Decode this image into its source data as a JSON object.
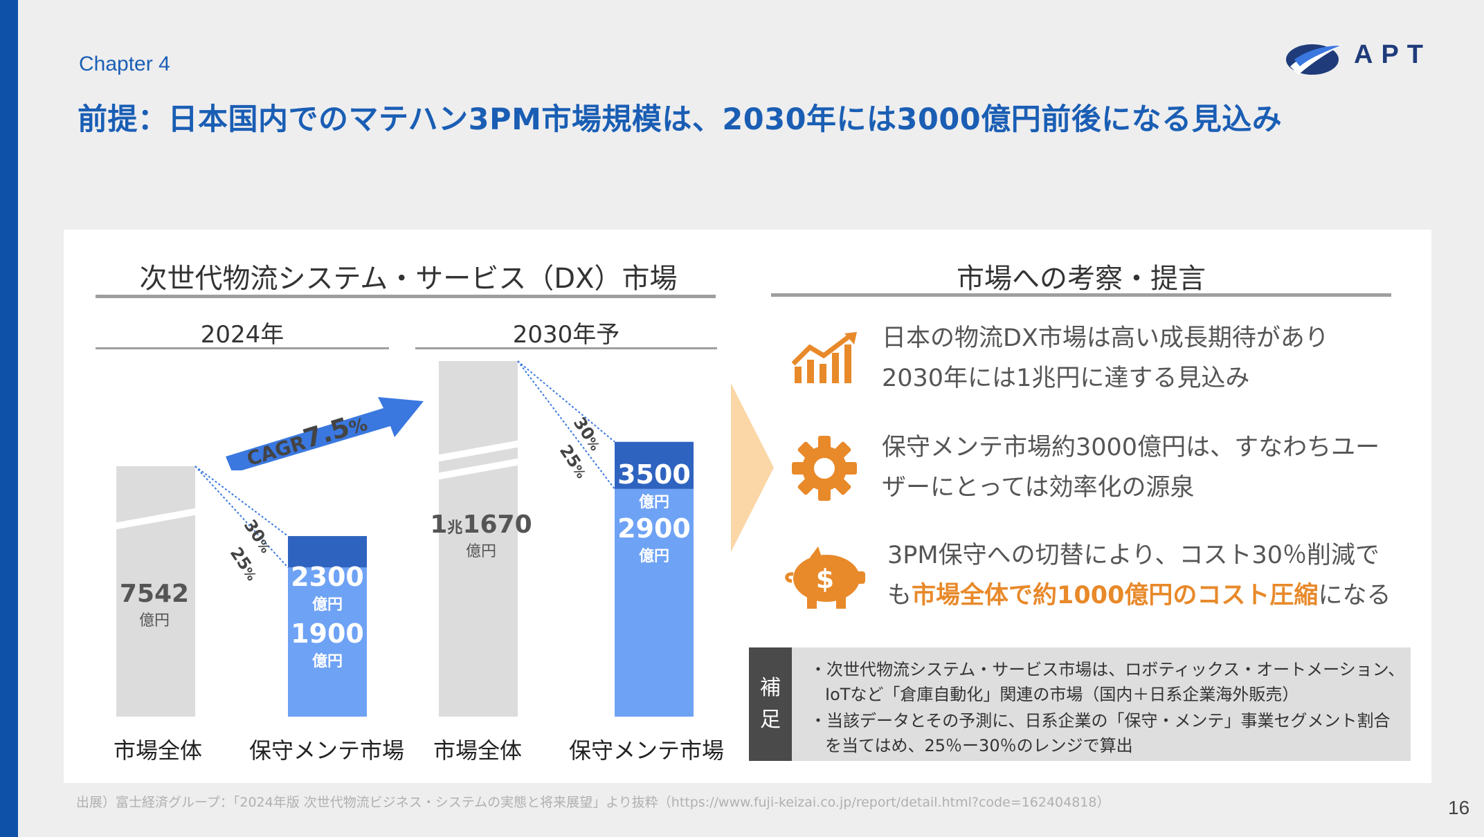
{
  "header": {
    "chapter": "Chapter 4",
    "title": "前提：日本国内でのマテハン3PM市場規模は、2030年には3000億円前後になる見込み",
    "logo_text": "APT"
  },
  "left": {
    "section_title": "次世代物流システム・サービス（DX）市場",
    "year_2024": "2024年",
    "year_2030": "2030年予",
    "cagr_prefix": "CAGR",
    "cagr_value": "7.5",
    "cagr_unit": "%"
  },
  "chart_data": {
    "type": "bar",
    "categories": [
      "市場全体",
      "保守メンテ市場",
      "市場全体",
      "保守メンテ市場"
    ],
    "groups": [
      "2024年",
      "2030年予"
    ],
    "series": [
      {
        "values": [
          7542,
          1900,
          11670,
          2900
        ]
      },
      {
        "values": [
          null,
          2300,
          null,
          3500
        ]
      }
    ],
    "value_labels": [
      {
        "main": "7542",
        "unit": "億円"
      },
      {
        "main": "2300",
        "unit": "億円"
      },
      {
        "main": "1900",
        "unit": "億円"
      },
      {
        "main_prefix": "1",
        "main_mid": "兆",
        "main": "1670",
        "unit": "億円"
      },
      {
        "main": "3500",
        "unit": "億円"
      },
      {
        "main": "2900",
        "unit": "億円"
      }
    ],
    "ratio_labels": [
      {
        "text": "30",
        "unit": "%"
      },
      {
        "text": "25",
        "unit": "%"
      },
      {
        "text": "30",
        "unit": "%"
      },
      {
        "text": "25",
        "unit": "%"
      }
    ],
    "colors": {
      "total": "#dcdcdc",
      "upper": "#2f63c0",
      "lower": "#6ea2f4",
      "arrow": "#3a78e0"
    }
  },
  "right": {
    "section_title": "市場への考察・提言",
    "insights": [
      {
        "icon": "growth-chart-icon",
        "line1": "日本の物流DX市場は高い成長期待があり",
        "line2": "2030年には1兆円に達する見込み"
      },
      {
        "icon": "gear-icon",
        "line1": "保守メンテ市場約3000億円は、すなわちユー",
        "line2": "ザーにとっては効率化の源泉"
      },
      {
        "icon": "piggy-bank-icon",
        "line1": "3PM保守への切替により、コスト30％削減で",
        "line2_pre": "も",
        "line2_hl": "市場全体で約1000億円のコスト圧縮",
        "line2_post": "になる"
      }
    ],
    "accent": "#e8892a"
  },
  "note": {
    "tag1": "補",
    "tag2": "足",
    "lines": [
      "・次世代物流システム・サービス市場は、ロボティックス・オートメーション、",
      "IoTなど「倉庫自動化」関連の市場（国内＋日系企業海外販売）",
      "・当該データとその予測に、日系企業の「保守・メンテ」事業セグメント割合",
      "を当てはめ、25％ー30％のレンジで算出"
    ]
  },
  "footer": {
    "source": "出展）富士経済グループ：「2024年版 次世代物流ビジネス・システムの実態と将来展望」より抜粋（https://www.fuji-keizai.co.jp/report/detail.html?code=162404818）",
    "page": "16"
  }
}
